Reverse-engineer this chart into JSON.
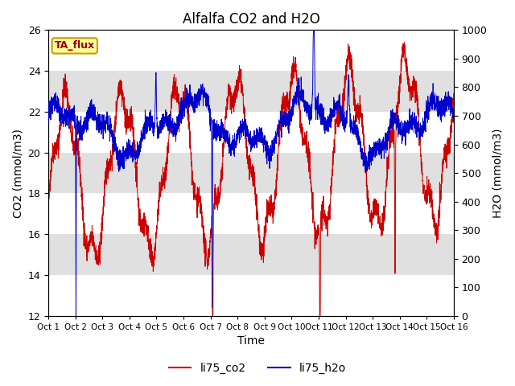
{
  "title": "Alfalfa CO2 and H2O",
  "xlabel": "Time",
  "ylabel_left": "CO2 (mmol/m3)",
  "ylabel_right": "H2O (mmol/m3)",
  "ylim_left": [
    12,
    26
  ],
  "ylim_right": [
    0,
    1000
  ],
  "yticks_left": [
    12,
    14,
    16,
    18,
    20,
    22,
    24,
    26
  ],
  "yticks_right": [
    0,
    100,
    200,
    300,
    400,
    500,
    600,
    700,
    800,
    900,
    1000
  ],
  "xtick_labels": [
    "Oct 1",
    "Oct 2",
    "Oct 3",
    "Oct 4",
    "Oct 5",
    "Oct 6",
    "Oct 7",
    "Oct 8",
    "Oct 9",
    "Oct 10",
    "Oct 11",
    "Oct 12",
    "Oct 13",
    "Oct 14",
    "Oct 15",
    "Oct 16"
  ],
  "co2_color": "#cc0000",
  "h2o_color": "#0000cc",
  "plot_bg_color": "#e0e0e0",
  "grid_color": "#ffffff",
  "band_color_light": "#d8d8d8",
  "band_color_dark": "#c8c8c8",
  "annotation_text": "TA_flux",
  "annotation_bg": "#ffff99",
  "annotation_border": "#cc9900",
  "legend_co2": "li75_co2",
  "legend_h2o": "li75_h2o",
  "title_fontsize": 12,
  "axis_fontsize": 10,
  "tick_fontsize": 9
}
